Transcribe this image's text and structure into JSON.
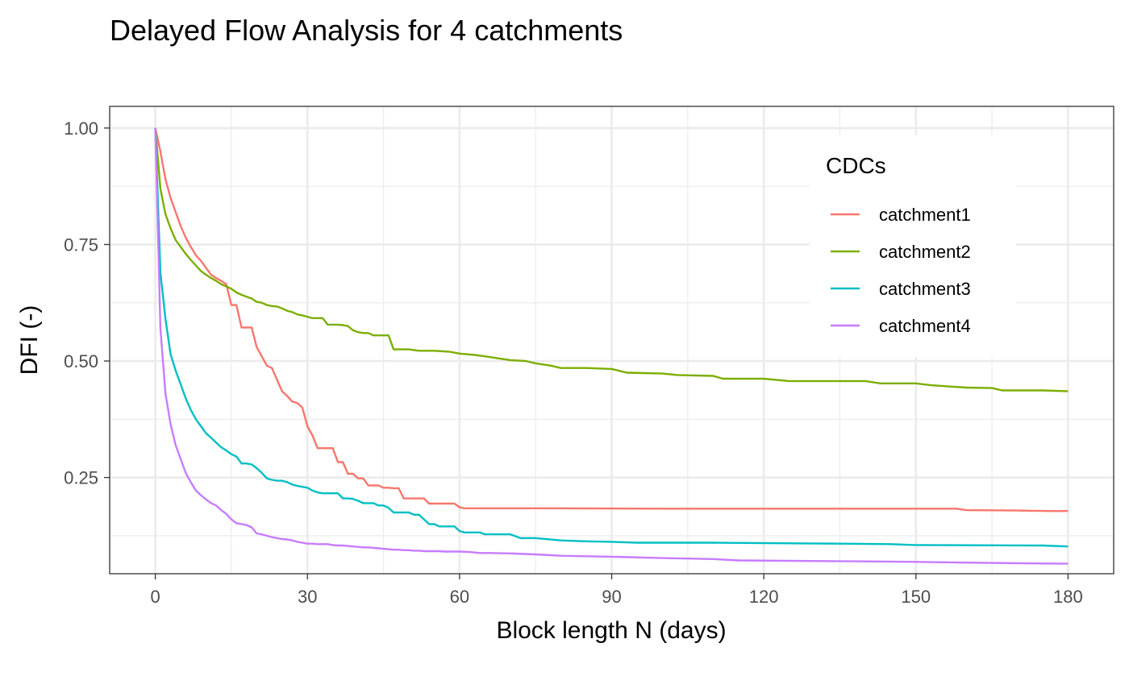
{
  "chart_data": {
    "type": "line",
    "title": "Delayed Flow Analysis for 4 catchments",
    "xlabel": "Block length N (days)",
    "ylabel": "DFI (-)",
    "xlim": [
      -9,
      189
    ],
    "ylim": [
      0.0435,
      1.0465
    ],
    "x_ticks": [
      0,
      30,
      60,
      90,
      120,
      150,
      180
    ],
    "x_tick_labels": [
      "0",
      "30",
      "60",
      "90",
      "120",
      "150",
      "180"
    ],
    "y_ticks": [
      0.25,
      0.5,
      0.75,
      1.0
    ],
    "y_tick_labels": [
      "0.25",
      "0.50",
      "0.75",
      "1.00"
    ],
    "grid": true,
    "legend": {
      "title": "CDCs",
      "position": "top-right (inside)"
    },
    "series": [
      {
        "name": "catchment1",
        "color": "#F8766D",
        "x": [
          0,
          1,
          2,
          3,
          4,
          5,
          6,
          7,
          8,
          9,
          10,
          11,
          12,
          13,
          14,
          15,
          16,
          17,
          18,
          19,
          20,
          21,
          22,
          23,
          24,
          25,
          26,
          27,
          28,
          29,
          30,
          31,
          32,
          33,
          34,
          35,
          36,
          37,
          38,
          39,
          40,
          41,
          42,
          43,
          44,
          45,
          46,
          47,
          48,
          49,
          50,
          51,
          52,
          53,
          54,
          55,
          56,
          57,
          58,
          59,
          60,
          61,
          65,
          80,
          100,
          140,
          158,
          160,
          170,
          176,
          180
        ],
        "y": [
          1.0,
          0.95,
          0.89,
          0.85,
          0.82,
          0.79,
          0.765,
          0.745,
          0.727,
          0.715,
          0.7,
          0.685,
          0.678,
          0.672,
          0.665,
          0.62,
          0.62,
          0.572,
          0.572,
          0.572,
          0.53,
          0.51,
          0.49,
          0.485,
          0.46,
          0.435,
          0.425,
          0.413,
          0.41,
          0.4,
          0.36,
          0.34,
          0.313,
          0.313,
          0.313,
          0.313,
          0.283,
          0.283,
          0.258,
          0.258,
          0.248,
          0.248,
          0.233,
          0.233,
          0.233,
          0.228,
          0.228,
          0.227,
          0.227,
          0.205,
          0.205,
          0.205,
          0.205,
          0.205,
          0.194,
          0.194,
          0.194,
          0.194,
          0.194,
          0.194,
          0.186,
          0.184,
          0.184,
          0.184,
          0.183,
          0.183,
          0.183,
          0.18,
          0.179,
          0.178,
          0.178
        ]
      },
      {
        "name": "catchment2",
        "color": "#7CAE00",
        "x": [
          0,
          1,
          2,
          3,
          4,
          5,
          6,
          7,
          8,
          9,
          10,
          11,
          12,
          13,
          14,
          15,
          16,
          17,
          18,
          19,
          20,
          21,
          22,
          23,
          24,
          25,
          26,
          27,
          28,
          29,
          30,
          31,
          32,
          33,
          34,
          35,
          36,
          37,
          38,
          39,
          40,
          41,
          42,
          43,
          44,
          45,
          46,
          47,
          48,
          49,
          50,
          52,
          55,
          58,
          60,
          63,
          65,
          68,
          70,
          73,
          75,
          78,
          80,
          85,
          90,
          93,
          100,
          103,
          110,
          112,
          120,
          125,
          140,
          143,
          150,
          153,
          157,
          160,
          165,
          167,
          175,
          180
        ],
        "y": [
          1.0,
          0.87,
          0.815,
          0.785,
          0.76,
          0.745,
          0.73,
          0.717,
          0.705,
          0.693,
          0.685,
          0.678,
          0.672,
          0.665,
          0.66,
          0.655,
          0.647,
          0.642,
          0.638,
          0.634,
          0.627,
          0.625,
          0.62,
          0.618,
          0.617,
          0.613,
          0.608,
          0.605,
          0.6,
          0.598,
          0.595,
          0.592,
          0.592,
          0.592,
          0.578,
          0.578,
          0.578,
          0.577,
          0.575,
          0.566,
          0.562,
          0.56,
          0.56,
          0.555,
          0.555,
          0.555,
          0.555,
          0.525,
          0.525,
          0.525,
          0.525,
          0.522,
          0.522,
          0.52,
          0.516,
          0.513,
          0.51,
          0.505,
          0.502,
          0.5,
          0.495,
          0.49,
          0.485,
          0.485,
          0.483,
          0.475,
          0.473,
          0.47,
          0.468,
          0.462,
          0.462,
          0.457,
          0.457,
          0.452,
          0.452,
          0.448,
          0.445,
          0.443,
          0.442,
          0.437,
          0.437,
          0.435
        ]
      },
      {
        "name": "catchment3",
        "color": "#00BFC4",
        "x": [
          0,
          1,
          2,
          3,
          4,
          5,
          6,
          7,
          8,
          9,
          10,
          11,
          12,
          13,
          14,
          15,
          16,
          17,
          18,
          19,
          20,
          21,
          22,
          23,
          24,
          25,
          26,
          27,
          28,
          29,
          30,
          31,
          32,
          33,
          34,
          35,
          36,
          37,
          38,
          39,
          40,
          41,
          42,
          43,
          44,
          45,
          46,
          47,
          48,
          49,
          50,
          51,
          52,
          53,
          54,
          55,
          56,
          57,
          58,
          59,
          60,
          61,
          62,
          63,
          64,
          65,
          66,
          70,
          72,
          75,
          80,
          85,
          90,
          95,
          110,
          135,
          145,
          150,
          175,
          180
        ],
        "y": [
          1.0,
          0.69,
          0.59,
          0.515,
          0.48,
          0.45,
          0.42,
          0.395,
          0.375,
          0.36,
          0.345,
          0.335,
          0.325,
          0.315,
          0.308,
          0.3,
          0.295,
          0.28,
          0.28,
          0.278,
          0.27,
          0.26,
          0.248,
          0.245,
          0.243,
          0.243,
          0.24,
          0.235,
          0.232,
          0.23,
          0.228,
          0.222,
          0.218,
          0.216,
          0.216,
          0.216,
          0.216,
          0.205,
          0.205,
          0.204,
          0.2,
          0.195,
          0.195,
          0.195,
          0.19,
          0.19,
          0.185,
          0.175,
          0.175,
          0.175,
          0.175,
          0.17,
          0.17,
          0.16,
          0.15,
          0.15,
          0.145,
          0.145,
          0.145,
          0.145,
          0.135,
          0.132,
          0.132,
          0.132,
          0.132,
          0.128,
          0.128,
          0.128,
          0.12,
          0.12,
          0.115,
          0.113,
          0.112,
          0.11,
          0.11,
          0.108,
          0.107,
          0.105,
          0.104,
          0.102
        ]
      },
      {
        "name": "catchment4",
        "color": "#C77CFF",
        "x": [
          0,
          1,
          2,
          3,
          4,
          5,
          6,
          7,
          8,
          9,
          10,
          11,
          12,
          13,
          14,
          15,
          16,
          17,
          18,
          19,
          20,
          21,
          22,
          23,
          24,
          25,
          26,
          27,
          28,
          29,
          30,
          31,
          32,
          33,
          34,
          35,
          36,
          37,
          38,
          39,
          40,
          41,
          42,
          43,
          44,
          45,
          46,
          47,
          48,
          49,
          50,
          51,
          52,
          53,
          54,
          55,
          56,
          57,
          58,
          59,
          60,
          62,
          64,
          66,
          70,
          75,
          80,
          85,
          90,
          100,
          110,
          115,
          140,
          150,
          155,
          170,
          180
        ],
        "y": [
          1.0,
          0.57,
          0.43,
          0.365,
          0.32,
          0.29,
          0.26,
          0.24,
          0.222,
          0.212,
          0.203,
          0.195,
          0.19,
          0.18,
          0.172,
          0.16,
          0.152,
          0.15,
          0.148,
          0.143,
          0.13,
          0.128,
          0.125,
          0.122,
          0.12,
          0.118,
          0.117,
          0.115,
          0.112,
          0.11,
          0.108,
          0.108,
          0.107,
          0.107,
          0.107,
          0.105,
          0.104,
          0.104,
          0.103,
          0.102,
          0.101,
          0.1,
          0.1,
          0.099,
          0.098,
          0.097,
          0.096,
          0.095,
          0.095,
          0.094,
          0.094,
          0.093,
          0.093,
          0.092,
          0.092,
          0.092,
          0.092,
          0.091,
          0.091,
          0.091,
          0.091,
          0.09,
          0.088,
          0.088,
          0.087,
          0.085,
          0.082,
          0.081,
          0.08,
          0.077,
          0.075,
          0.072,
          0.07,
          0.069,
          0.068,
          0.066,
          0.065
        ]
      }
    ]
  }
}
